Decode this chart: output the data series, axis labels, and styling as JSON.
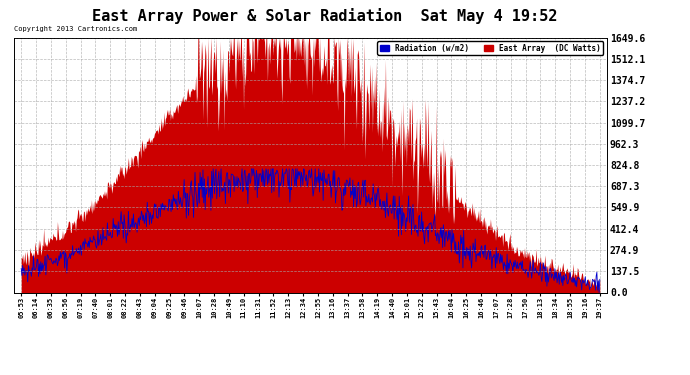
{
  "title": "East Array Power & Solar Radiation  Sat May 4 19:52",
  "copyright": "Copyright 2013 Cartronics.com",
  "legend_radiation": "Radiation (w/m2)",
  "legend_east": "East Array  (DC Watts)",
  "legend_radiation_bg": "#0000cc",
  "legend_east_bg": "#cc0000",
  "y_min": 0.0,
  "y_max": 1649.6,
  "y_ticks": [
    0.0,
    137.5,
    274.9,
    412.4,
    549.9,
    687.3,
    824.8,
    962.3,
    1099.7,
    1237.2,
    1374.7,
    1512.1,
    1649.6
  ],
  "background_color": "#ffffff",
  "grid_color": "#aaaaaa",
  "title_fontsize": 11,
  "x_labels": [
    "05:53",
    "06:14",
    "06:35",
    "06:56",
    "07:19",
    "07:40",
    "08:01",
    "08:22",
    "08:43",
    "09:04",
    "09:25",
    "09:46",
    "10:07",
    "10:28",
    "10:49",
    "11:10",
    "11:31",
    "11:52",
    "12:13",
    "12:34",
    "12:55",
    "13:16",
    "13:37",
    "13:58",
    "14:19",
    "14:40",
    "15:01",
    "15:22",
    "15:43",
    "16:04",
    "16:25",
    "16:46",
    "17:07",
    "17:28",
    "17:50",
    "18:13",
    "18:34",
    "18:55",
    "19:16",
    "19:37"
  ],
  "n_fine": 800,
  "seed": 12345
}
